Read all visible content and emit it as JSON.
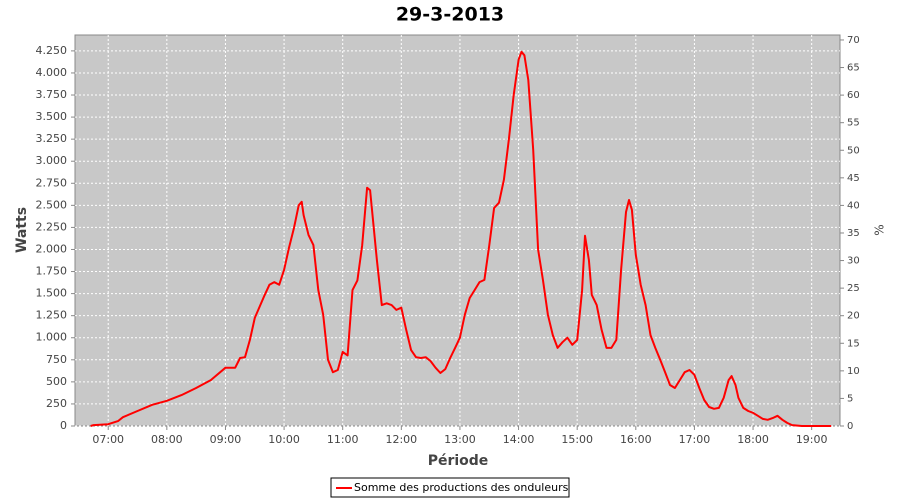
{
  "chart_data": {
    "type": "line",
    "title": "29-3-2013",
    "xlabel": "Période",
    "ylabel": "Watts",
    "y2label": "%",
    "grid": true,
    "legend": "bottom",
    "plot_background": "#c8c8c8",
    "xlim": [
      "06:26",
      "19:29"
    ],
    "xticks": [
      "07:00",
      "08:00",
      "09:00",
      "10:00",
      "11:00",
      "12:00",
      "13:00",
      "14:00",
      "15:00",
      "16:00",
      "17:00",
      "18:00",
      "19:00"
    ],
    "ylim": [
      0,
      4430
    ],
    "yticks": [
      0,
      250,
      500,
      750,
      {
        "value": 1000,
        "label": "1.000"
      },
      {
        "value": 1250,
        "label": "1.250"
      },
      {
        "value": 1500,
        "label": "1.500"
      },
      {
        "value": 1750,
        "label": "1.750"
      },
      {
        "value": 2000,
        "label": "2.000"
      },
      {
        "value": 2250,
        "label": "2.250"
      },
      {
        "value": 2500,
        "label": "2.500"
      },
      {
        "value": 2750,
        "label": "2.750"
      },
      {
        "value": 3000,
        "label": "3.000"
      },
      {
        "value": 3250,
        "label": "3.250"
      },
      {
        "value": 3500,
        "label": "3.500"
      },
      {
        "value": 3750,
        "label": "3.750"
      },
      {
        "value": 4000,
        "label": "4.000"
      },
      {
        "value": 4250,
        "label": "4.250"
      }
    ],
    "y2lim": [
      0,
      70.9
    ],
    "y2ticks": [
      0,
      5,
      10,
      15,
      20,
      25,
      30,
      35,
      40,
      45,
      50,
      55,
      60,
      65,
      70
    ],
    "x": [
      "06:42",
      "06:45",
      "07:00",
      "07:10",
      "07:15",
      "07:30",
      "07:45",
      "08:00",
      "08:15",
      "08:30",
      "08:45",
      "09:00",
      "09:10",
      "09:15",
      "09:20",
      "09:25",
      "09:30",
      "09:40",
      "09:45",
      "09:50",
      "09:55",
      "10:00",
      "10:05",
      "10:10",
      "10:15",
      "10:18",
      "10:20",
      "10:25",
      "10:30",
      "10:35",
      "10:40",
      "10:45",
      "10:50",
      "10:55",
      "11:00",
      "11:05",
      "11:10",
      "11:15",
      "11:20",
      "11:25",
      "11:28",
      "11:35",
      "11:40",
      "11:45",
      "11:50",
      "11:55",
      "12:00",
      "12:05",
      "12:10",
      "12:15",
      "12:20",
      "12:25",
      "12:30",
      "12:35",
      "12:40",
      "12:45",
      "12:50",
      "12:55",
      "13:00",
      "13:05",
      "13:10",
      "13:15",
      "13:20",
      "13:25",
      "13:30",
      "13:35",
      "13:40",
      "13:45",
      "13:50",
      "13:55",
      "14:00",
      "14:03",
      "14:06",
      "14:10",
      "14:15",
      "14:20",
      "14:25",
      "14:30",
      "14:35",
      "14:40",
      "14:45",
      "14:50",
      "14:55",
      "15:00",
      "15:05",
      "15:08",
      "15:12",
      "15:15",
      "15:20",
      "15:25",
      "15:30",
      "15:35",
      "15:40",
      "15:45",
      "15:50",
      "15:53",
      "15:56",
      "16:00",
      "16:05",
      "16:10",
      "16:15",
      "16:20",
      "16:25",
      "16:30",
      "16:35",
      "16:40",
      "16:45",
      "16:50",
      "16:55",
      "17:00",
      "17:05",
      "17:10",
      "17:15",
      "17:20",
      "17:25",
      "17:30",
      "17:35",
      "17:38",
      "17:42",
      "17:45",
      "17:50",
      "17:55",
      "18:00",
      "18:05",
      "18:10",
      "18:15",
      "18:20",
      "18:25",
      "18:30",
      "18:35",
      "18:40",
      "18:50",
      "19:20"
    ],
    "series": [
      {
        "name": "Somme des productions des onduleurs",
        "color": "#ff0000",
        "values": [
          0,
          10,
          20,
          55,
          100,
          170,
          240,
          285,
          350,
          430,
          520,
          660,
          660,
          770,
          780,
          975,
          1225,
          1480,
          1600,
          1630,
          1600,
          1770,
          2020,
          2240,
          2500,
          2540,
          2390,
          2165,
          2050,
          1540,
          1260,
          750,
          610,
          635,
          840,
          800,
          1540,
          1650,
          2050,
          2700,
          2670,
          1880,
          1370,
          1390,
          1370,
          1315,
          1340,
          1090,
          860,
          780,
          770,
          780,
          735,
          660,
          600,
          645,
          770,
          885,
          1000,
          1260,
          1450,
          1540,
          1630,
          1655,
          2050,
          2470,
          2530,
          2790,
          3240,
          3750,
          4150,
          4240,
          4200,
          3920,
          3130,
          2000,
          1650,
          1260,
          1030,
          885,
          950,
          1000,
          920,
          975,
          1540,
          2155,
          1880,
          1485,
          1370,
          1090,
          885,
          885,
          975,
          1770,
          2425,
          2560,
          2450,
          1940,
          1600,
          1370,
          1030,
          885,
          750,
          610,
          465,
          430,
          520,
          610,
          635,
          580,
          430,
          295,
          215,
          195,
          205,
          320,
          520,
          565,
          465,
          320,
          205,
          170,
          150,
          115,
          80,
          70,
          90,
          115,
          70,
          35,
          10,
          0,
          0
        ]
      }
    ]
  }
}
